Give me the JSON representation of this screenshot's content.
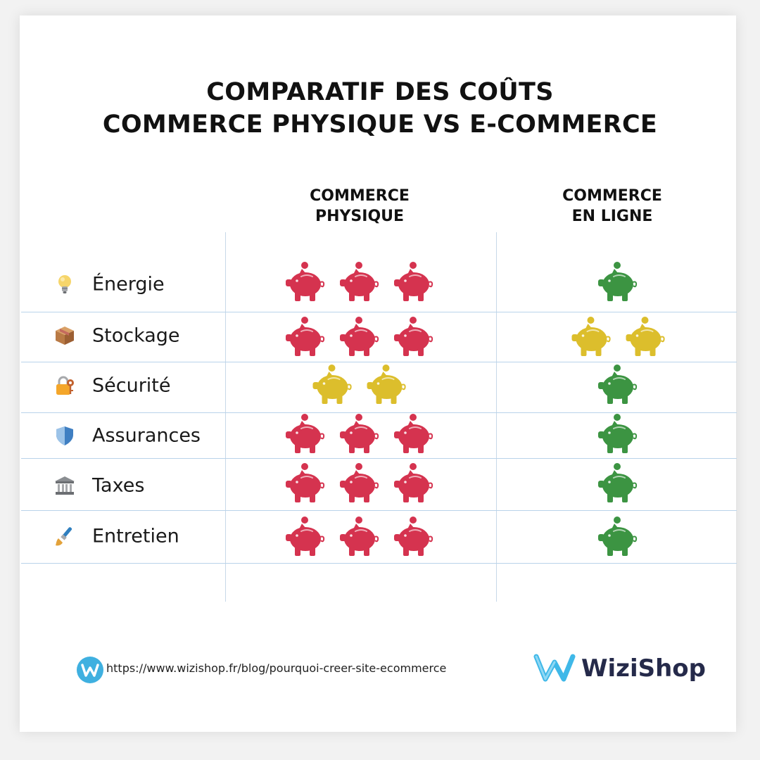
{
  "title": {
    "line1": "COMPARATIF DES COÛTS",
    "line2": "COMMERCE PHYSIQUE VS E-COMMERCE"
  },
  "columns": {
    "physical": {
      "line1": "COMMERCE",
      "line2": "PHYSIQUE"
    },
    "online": {
      "line1": "COMMERCE",
      "line2": "EN LIGNE"
    }
  },
  "rows": [
    {
      "label": "Énergie",
      "icon": "light-bulb-icon",
      "physical": {
        "count": 3,
        "level": "red"
      },
      "online": {
        "count": 1,
        "level": "green"
      }
    },
    {
      "label": "Stockage",
      "icon": "package-box-icon",
      "physical": {
        "count": 3,
        "level": "red"
      },
      "online": {
        "count": 2,
        "level": "yellow"
      }
    },
    {
      "label": "Sécurité",
      "icon": "lock-with-key-icon",
      "physical": {
        "count": 2,
        "level": "yellow"
      },
      "online": {
        "count": 1,
        "level": "green"
      }
    },
    {
      "label": "Assurances",
      "icon": "shield-icon",
      "physical": {
        "count": 3,
        "level": "red"
      },
      "online": {
        "count": 1,
        "level": "green"
      }
    },
    {
      "label": "Taxes",
      "icon": "classical-building-icon",
      "physical": {
        "count": 3,
        "level": "red"
      },
      "online": {
        "count": 1,
        "level": "green"
      }
    },
    {
      "label": "Entretien",
      "icon": "paintbrush-icon",
      "physical": {
        "count": 3,
        "level": "red"
      },
      "online": {
        "count": 1,
        "level": "green"
      }
    }
  ],
  "colors": {
    "red": "#d5334f",
    "yellow": "#dcbe2c",
    "green": "#3c9442",
    "brand_blue": "#3fb8e8",
    "brand_text": "#252a4a"
  },
  "footer": {
    "url": "https://www.wizishop.fr/blog/pourquoi-creer-site-ecommerce",
    "brand": "WiziShop",
    "logo_icon": "wizishop-w-logo-icon"
  }
}
